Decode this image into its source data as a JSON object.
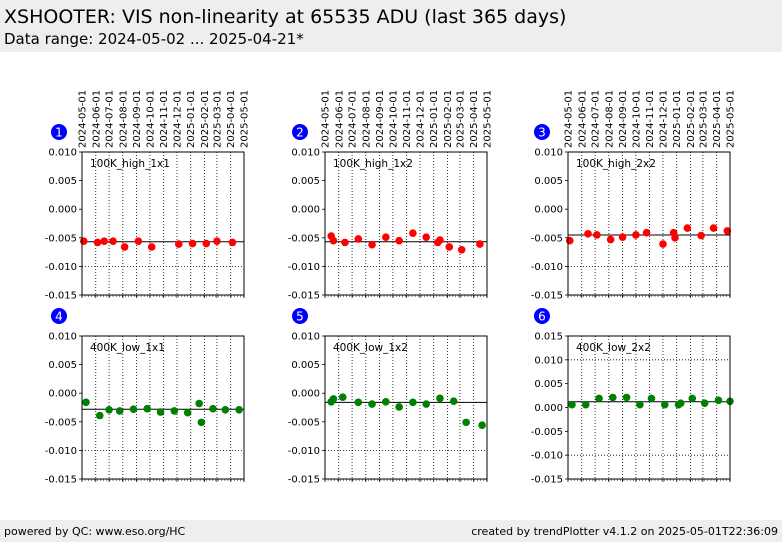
{
  "header": {
    "title": "XSHOOTER: VIS non-linearity at 65535 ADU (last 365 days)",
    "subtitle": "Data range: 2024-05-02 ... 2025-04-21*"
  },
  "footer": {
    "left": "powered by QC: www.eso.org/HC",
    "right": "created by trendPlotter v4.1.2 on 2025-05-01T22:36:09"
  },
  "colors": {
    "header_bg": "#eeeeee",
    "badge": "#0000ff",
    "red_series": "#ff0000",
    "green_series": "#008000"
  },
  "x_ticks": [
    "2024-05-01",
    "2024-06-01",
    "2024-07-01",
    "2024-08-01",
    "2024-09-01",
    "2024-10-01",
    "2024-11-01",
    "2024-12-01",
    "2025-01-01",
    "2025-02-01",
    "2025-03-01",
    "2025-04-01",
    "2025-05-01"
  ],
  "chart_data": [
    {
      "type": "scatter",
      "panel_number": "1",
      "label": "100K_high_1x1",
      "color": "red",
      "xlim": [
        "2024-05-01",
        "2025-05-01"
      ],
      "ylim": [
        -0.015,
        0.01
      ],
      "yticks": [
        "0.010",
        "0.005",
        "0.000",
        "-0.005",
        "-0.010",
        "-0.015"
      ],
      "reference_y": -0.0057,
      "points": [
        {
          "x": "2024-05-05",
          "y": -0.0056
        },
        {
          "x": "2024-06-05",
          "y": -0.0058
        },
        {
          "x": "2024-06-20",
          "y": -0.0056
        },
        {
          "x": "2024-07-10",
          "y": -0.0056
        },
        {
          "x": "2024-08-05",
          "y": -0.0066
        },
        {
          "x": "2024-09-05",
          "y": -0.0056
        },
        {
          "x": "2024-10-05",
          "y": -0.0066
        },
        {
          "x": "2024-12-05",
          "y": -0.0061
        },
        {
          "x": "2025-01-05",
          "y": -0.006
        },
        {
          "x": "2025-02-05",
          "y": -0.006
        },
        {
          "x": "2025-03-01",
          "y": -0.0056
        },
        {
          "x": "2025-04-05",
          "y": -0.0058
        }
      ]
    },
    {
      "type": "scatter",
      "panel_number": "2",
      "label": "100K_high_1x2",
      "color": "red",
      "xlim": [
        "2024-05-01",
        "2025-05-01"
      ],
      "ylim": [
        -0.015,
        0.01
      ],
      "yticks": [
        "0.010",
        "0.005",
        "0.000",
        "-0.005",
        "-0.010",
        "-0.015"
      ],
      "reference_y": -0.0057,
      "points": [
        {
          "x": "2024-05-15",
          "y": -0.0047
        },
        {
          "x": "2024-05-20",
          "y": -0.0055
        },
        {
          "x": "2024-06-15",
          "y": -0.0058
        },
        {
          "x": "2024-07-15",
          "y": -0.0052
        },
        {
          "x": "2024-08-15",
          "y": -0.0062
        },
        {
          "x": "2024-09-15",
          "y": -0.0049
        },
        {
          "x": "2024-10-15",
          "y": -0.0055
        },
        {
          "x": "2024-11-15",
          "y": -0.0042
        },
        {
          "x": "2024-12-15",
          "y": -0.0049
        },
        {
          "x": "2025-01-10",
          "y": -0.0058
        },
        {
          "x": "2025-01-15",
          "y": -0.0054
        },
        {
          "x": "2025-02-05",
          "y": -0.0066
        },
        {
          "x": "2025-03-05",
          "y": -0.0071
        },
        {
          "x": "2025-04-15",
          "y": -0.0061
        }
      ]
    },
    {
      "type": "scatter",
      "panel_number": "3",
      "label": "100K_high_2x2",
      "color": "red",
      "xlim": [
        "2024-05-01",
        "2025-05-01"
      ],
      "ylim": [
        -0.015,
        0.01
      ],
      "yticks": [
        "0.010",
        "0.005",
        "0.000",
        "-0.005",
        "-0.010",
        "-0.015"
      ],
      "reference_y": -0.0045,
      "points": [
        {
          "x": "2024-05-05",
          "y": -0.0055
        },
        {
          "x": "2024-06-15",
          "y": -0.0043
        },
        {
          "x": "2024-07-05",
          "y": -0.0045
        },
        {
          "x": "2024-08-05",
          "y": -0.0053
        },
        {
          "x": "2024-09-01",
          "y": -0.0049
        },
        {
          "x": "2024-10-01",
          "y": -0.0045
        },
        {
          "x": "2024-10-25",
          "y": -0.0041
        },
        {
          "x": "2024-12-01",
          "y": -0.0061
        },
        {
          "x": "2024-12-25",
          "y": -0.0041
        },
        {
          "x": "2024-12-28",
          "y": -0.005
        },
        {
          "x": "2025-01-25",
          "y": -0.0033
        },
        {
          "x": "2025-02-25",
          "y": -0.0046
        },
        {
          "x": "2025-03-25",
          "y": -0.0033
        },
        {
          "x": "2025-04-25",
          "y": -0.0038
        }
      ]
    },
    {
      "type": "scatter",
      "panel_number": "4",
      "label": "400K_low_1x1",
      "color": "green",
      "xlim": [
        "2024-05-01",
        "2025-05-01"
      ],
      "ylim": [
        -0.015,
        0.01
      ],
      "yticks": [
        "0.010",
        "0.005",
        "0.000",
        "-0.005",
        "-0.010",
        "-0.015"
      ],
      "reference_y": -0.0028,
      "points": [
        {
          "x": "2024-05-10",
          "y": -0.0016
        },
        {
          "x": "2024-06-10",
          "y": -0.0039
        },
        {
          "x": "2024-07-01",
          "y": -0.0029
        },
        {
          "x": "2024-07-25",
          "y": -0.0031
        },
        {
          "x": "2024-08-25",
          "y": -0.0028
        },
        {
          "x": "2024-09-25",
          "y": -0.0027
        },
        {
          "x": "2024-10-25",
          "y": -0.0033
        },
        {
          "x": "2024-11-25",
          "y": -0.0031
        },
        {
          "x": "2024-12-25",
          "y": -0.0034
        },
        {
          "x": "2025-01-20",
          "y": -0.0018
        },
        {
          "x": "2025-01-25",
          "y": -0.0051
        },
        {
          "x": "2025-02-20",
          "y": -0.0027
        },
        {
          "x": "2025-03-20",
          "y": -0.0029
        },
        {
          "x": "2025-04-20",
          "y": -0.0029
        }
      ]
    },
    {
      "type": "scatter",
      "panel_number": "5",
      "label": "400K_low_1x2",
      "color": "green",
      "xlim": [
        "2024-05-01",
        "2025-05-01"
      ],
      "ylim": [
        -0.015,
        0.01
      ],
      "yticks": [
        "0.010",
        "0.005",
        "0.000",
        "-0.005",
        "-0.010",
        "-0.015"
      ],
      "reference_y": -0.0016,
      "points": [
        {
          "x": "2024-05-15",
          "y": -0.0015
        },
        {
          "x": "2024-05-20",
          "y": -0.001
        },
        {
          "x": "2024-06-10",
          "y": -0.0007
        },
        {
          "x": "2024-07-15",
          "y": -0.0016
        },
        {
          "x": "2024-08-15",
          "y": -0.0019
        },
        {
          "x": "2024-09-15",
          "y": -0.0015
        },
        {
          "x": "2024-10-15",
          "y": -0.0024
        },
        {
          "x": "2024-11-15",
          "y": -0.0016
        },
        {
          "x": "2024-12-15",
          "y": -0.0019
        },
        {
          "x": "2025-01-15",
          "y": -0.0009
        },
        {
          "x": "2025-02-15",
          "y": -0.0014
        },
        {
          "x": "2025-03-15",
          "y": -0.0051
        },
        {
          "x": "2025-04-20",
          "y": -0.0056
        }
      ]
    },
    {
      "type": "scatter",
      "panel_number": "6",
      "label": "400K_low_2x2",
      "color": "green",
      "xlim": [
        "2024-05-01",
        "2025-05-01"
      ],
      "ylim": [
        -0.015,
        0.015
      ],
      "yticks": [
        "0.015",
        "0.010",
        "0.005",
        "0.000",
        "-0.005",
        "-0.010",
        "-0.015"
      ],
      "reference_y": 0.0012,
      "points": [
        {
          "x": "2024-05-10",
          "y": 0.0006
        },
        {
          "x": "2024-06-10",
          "y": 0.0006
        },
        {
          "x": "2024-07-10",
          "y": 0.0019
        },
        {
          "x": "2024-08-10",
          "y": 0.0021
        },
        {
          "x": "2024-09-10",
          "y": 0.0021
        },
        {
          "x": "2024-10-10",
          "y": 0.0006
        },
        {
          "x": "2024-11-05",
          "y": 0.0019
        },
        {
          "x": "2024-12-05",
          "y": 0.0006
        },
        {
          "x": "2025-01-05",
          "y": 0.0006
        },
        {
          "x": "2025-01-10",
          "y": 0.0009
        },
        {
          "x": "2025-02-05",
          "y": 0.0019
        },
        {
          "x": "2025-03-05",
          "y": 0.0009
        },
        {
          "x": "2025-04-05",
          "y": 0.0015
        },
        {
          "x": "2025-05-01",
          "y": 0.0013
        }
      ]
    }
  ]
}
